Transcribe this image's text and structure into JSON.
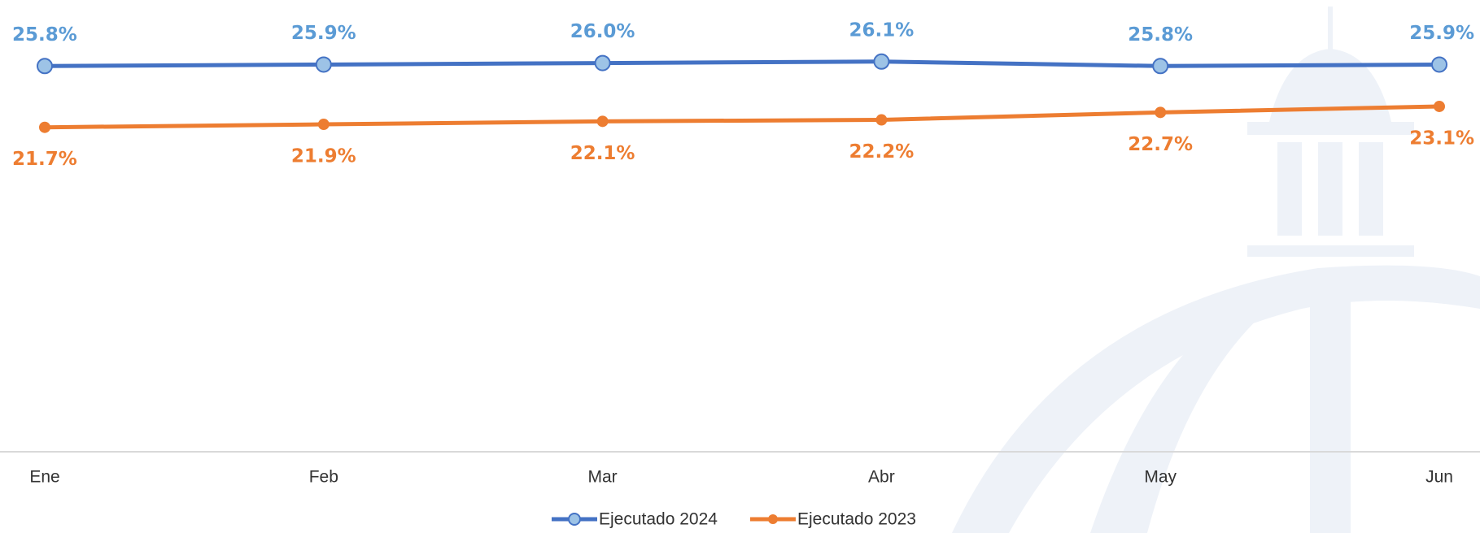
{
  "chart_data": {
    "type": "line",
    "categories": [
      "Ene",
      "Feb",
      "Mar",
      "Abr",
      "May",
      "Jun"
    ],
    "series": [
      {
        "name": "Ejecutado 2024",
        "color": "#4472c4",
        "marker_color": "#9dc3e6",
        "label_color": "#5b9bd5",
        "values": [
          25.8,
          25.9,
          26.0,
          26.1,
          25.8,
          25.9
        ],
        "value_labels": [
          "25.8%",
          "25.9%",
          "26.0%",
          "26.1%",
          "25.8%",
          "25.9%"
        ]
      },
      {
        "name": "Ejecutado 2023",
        "color": "#ed7d31",
        "marker_color": "#ed7d31",
        "label_color": "#ed7d31",
        "values": [
          21.7,
          21.9,
          22.1,
          22.2,
          22.7,
          23.1
        ],
        "value_labels": [
          "21.7%",
          "21.9%",
          "22.1%",
          "22.2%",
          "22.7%",
          "23.1%"
        ]
      }
    ]
  }
}
